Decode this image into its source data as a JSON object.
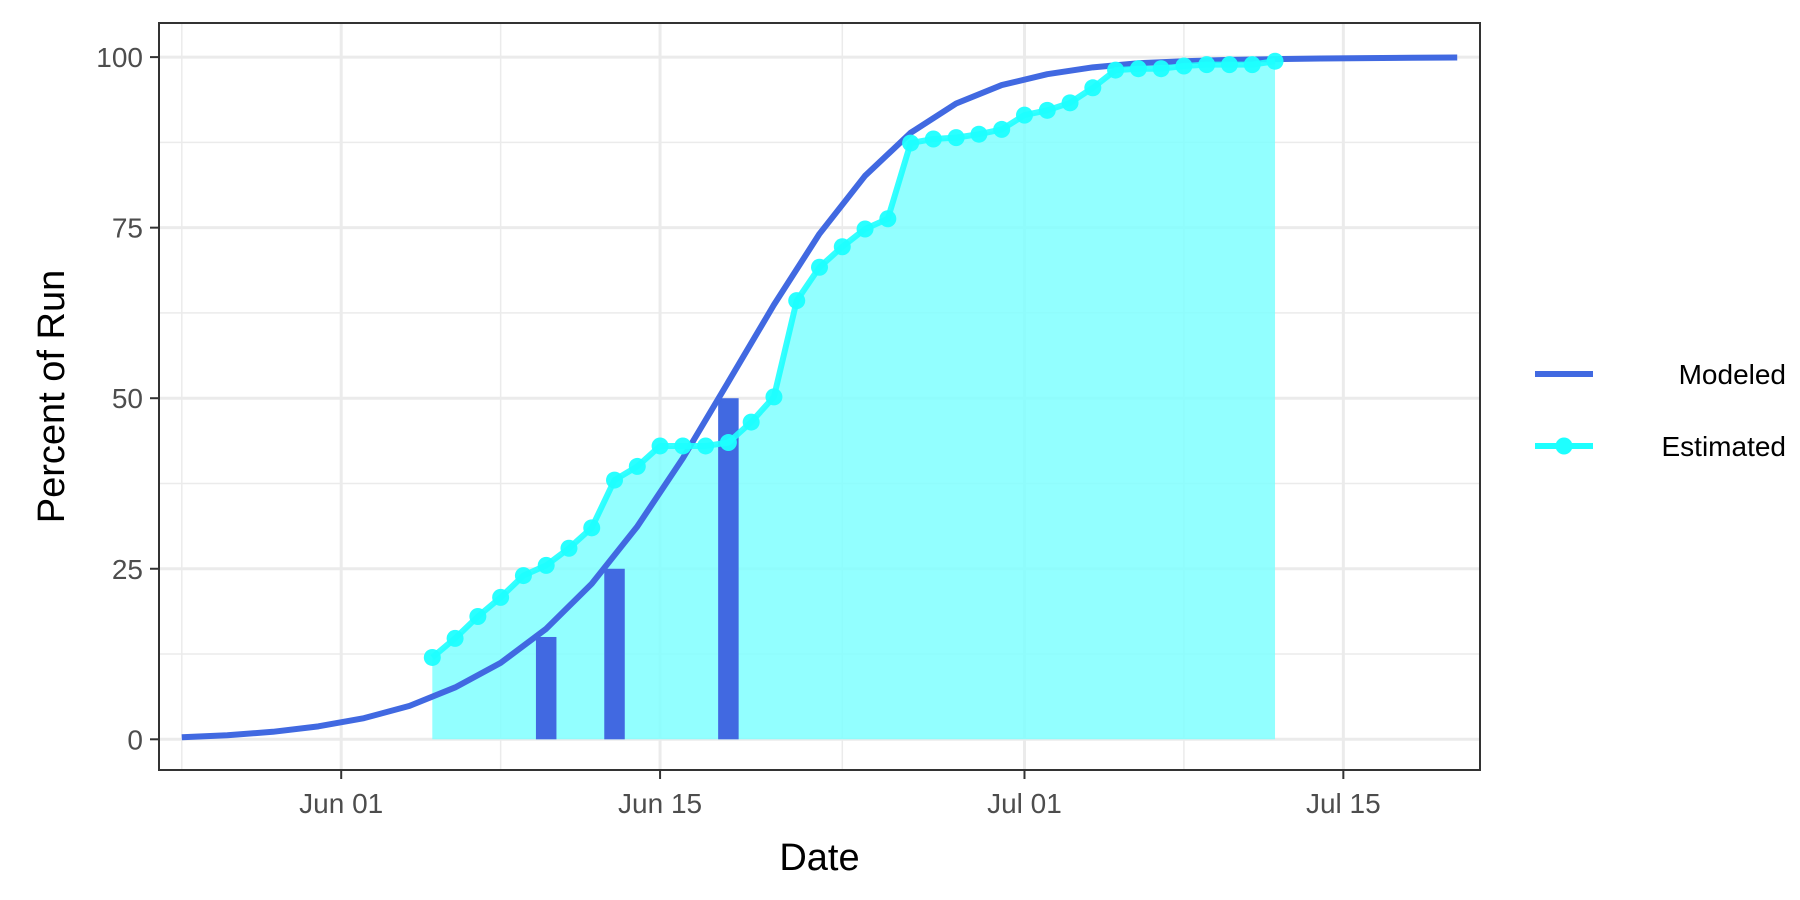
{
  "chart_data": {
    "type": "line",
    "xlabel": "Date",
    "ylabel": "Percent of Run",
    "xlim": [
      "2024-05-24",
      "2024-07-21"
    ],
    "ylim": [
      -4.5,
      105
    ],
    "x_ticks": [
      "2024-06-01",
      "2024-06-15",
      "2024-07-01",
      "2024-07-15"
    ],
    "x_tick_labels": [
      "Jun 01",
      "Jun 15",
      "Jul 01",
      "Jul 15"
    ],
    "y_ticks": [
      0,
      25,
      50,
      75,
      100
    ],
    "y_tick_labels": [
      "0",
      "25",
      "50",
      "75",
      "100"
    ],
    "grid": true,
    "legend_position": "right",
    "series": [
      {
        "name": "Modeled",
        "type": "line",
        "color": "#4169E1",
        "x": [
          "2024-05-25",
          "2024-05-27",
          "2024-05-29",
          "2024-05-31",
          "2024-06-02",
          "2024-06-04",
          "2024-06-06",
          "2024-06-08",
          "2024-06-10",
          "2024-06-12",
          "2024-06-14",
          "2024-06-16",
          "2024-06-18",
          "2024-06-20",
          "2024-06-22",
          "2024-06-24",
          "2024-06-26",
          "2024-06-28",
          "2024-06-30",
          "2024-07-02",
          "2024-07-04",
          "2024-07-06",
          "2024-07-08",
          "2024-07-10",
          "2024-07-12",
          "2024-07-14",
          "2024-07-16",
          "2024-07-18",
          "2024-07-20"
        ],
        "y": [
          0.3,
          0.6,
          1.1,
          1.9,
          3.1,
          4.9,
          7.6,
          11.2,
          16.2,
          22.8,
          31.2,
          41.2,
          52.4,
          63.7,
          74.1,
          82.6,
          88.9,
          93.2,
          95.9,
          97.5,
          98.5,
          99.1,
          99.4,
          99.6,
          99.7,
          99.8,
          99.85,
          99.9,
          99.95
        ]
      },
      {
        "name": "Estimated",
        "type": "line+points",
        "color": "#1EFFFF",
        "fill_color": "#7FFFFF",
        "x": [
          "2024-06-05",
          "2024-06-06",
          "2024-06-07",
          "2024-06-08",
          "2024-06-09",
          "2024-06-10",
          "2024-06-11",
          "2024-06-12",
          "2024-06-13",
          "2024-06-14",
          "2024-06-15",
          "2024-06-16",
          "2024-06-17",
          "2024-06-18",
          "2024-06-19",
          "2024-06-20",
          "2024-06-21",
          "2024-06-22",
          "2024-06-23",
          "2024-06-24",
          "2024-06-25",
          "2024-06-26",
          "2024-06-27",
          "2024-06-28",
          "2024-06-29",
          "2024-06-30",
          "2024-07-01",
          "2024-07-02",
          "2024-07-03",
          "2024-07-04",
          "2024-07-05",
          "2024-07-06",
          "2024-07-07",
          "2024-07-08",
          "2024-07-09",
          "2024-07-10",
          "2024-07-11",
          "2024-07-12"
        ],
        "y": [
          12,
          14.8,
          18,
          20.8,
          24,
          25.5,
          28,
          31,
          38,
          40,
          43,
          43,
          43,
          43.5,
          46.5,
          50.2,
          64.3,
          69.2,
          72.2,
          74.8,
          76.3,
          87.4,
          88,
          88.2,
          88.7,
          89.4,
          91.5,
          92.2,
          93.3,
          95.5,
          98.1,
          98.3,
          98.3,
          98.7,
          98.9,
          98.9,
          98.9,
          99.4
        ]
      },
      {
        "name": "",
        "type": "bar",
        "color": "#4169E1",
        "x": [
          "2024-06-10",
          "2024-06-13",
          "2024-06-18"
        ],
        "y": [
          15,
          25,
          50
        ]
      }
    ]
  }
}
